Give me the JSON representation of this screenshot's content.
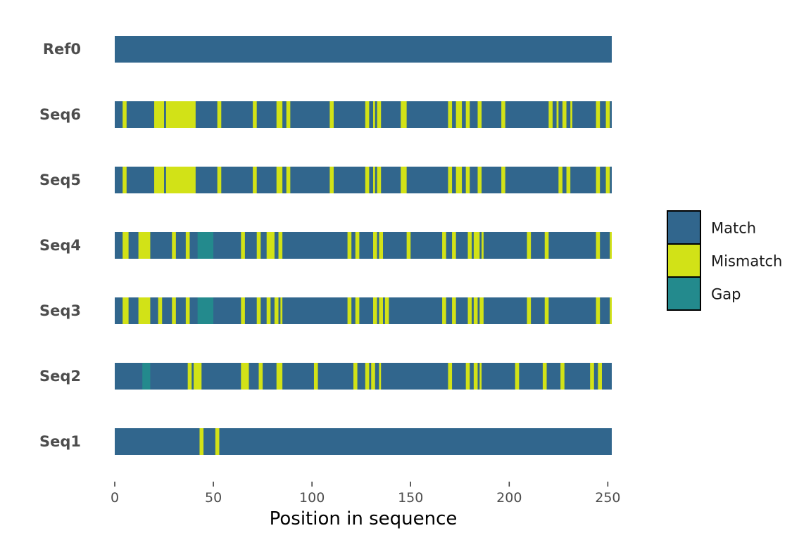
{
  "chart_data": {
    "type": "alignment-heatmap",
    "xlabel": "Position in sequence",
    "xlim": [
      0,
      252
    ],
    "xticks": [
      0,
      50,
      100,
      150,
      200,
      250
    ],
    "legend": {
      "placement": "right",
      "entries": [
        {
          "label": "Match",
          "color": "#31668d"
        },
        {
          "label": "Mismatch",
          "color": "#d2e217"
        },
        {
          "label": "Gap",
          "color": "#238a8d"
        }
      ]
    },
    "rows": [
      {
        "label": "Ref0",
        "mismatch": [],
        "gap": []
      },
      {
        "label": "Seq6",
        "mismatch": [
          [
            4,
            6
          ],
          [
            20,
            25
          ],
          [
            26,
            41
          ],
          [
            52,
            54
          ],
          [
            70,
            72
          ],
          [
            82,
            85
          ],
          [
            87,
            89
          ],
          [
            109,
            111
          ],
          [
            127,
            129
          ],
          [
            131,
            132
          ],
          [
            133,
            135
          ],
          [
            145,
            148
          ],
          [
            169,
            171
          ],
          [
            173,
            176
          ],
          [
            178,
            180
          ],
          [
            184,
            186
          ],
          [
            196,
            198
          ],
          [
            220,
            222
          ],
          [
            224,
            225
          ],
          [
            227,
            229
          ],
          [
            231,
            232
          ],
          [
            244,
            246
          ],
          [
            249,
            251
          ]
        ],
        "gap": []
      },
      {
        "label": "Seq5",
        "mismatch": [
          [
            4,
            6
          ],
          [
            20,
            25
          ],
          [
            26,
            41
          ],
          [
            52,
            54
          ],
          [
            70,
            72
          ],
          [
            82,
            85
          ],
          [
            87,
            89
          ],
          [
            109,
            111
          ],
          [
            127,
            129
          ],
          [
            131,
            132
          ],
          [
            133,
            135
          ],
          [
            145,
            148
          ],
          [
            169,
            171
          ],
          [
            173,
            176
          ],
          [
            178,
            180
          ],
          [
            184,
            186
          ],
          [
            196,
            198
          ],
          [
            225,
            227
          ],
          [
            229,
            231
          ],
          [
            244,
            246
          ],
          [
            249,
            251
          ]
        ],
        "gap": []
      },
      {
        "label": "Seq4",
        "mismatch": [
          [
            4,
            7
          ],
          [
            12,
            18
          ],
          [
            29,
            31
          ],
          [
            36,
            38
          ],
          [
            64,
            66
          ],
          [
            72,
            74
          ],
          [
            77,
            81
          ],
          [
            83,
            85
          ],
          [
            118,
            120
          ],
          [
            122,
            124
          ],
          [
            131,
            133
          ],
          [
            134,
            136
          ],
          [
            148,
            150
          ],
          [
            166,
            168
          ],
          [
            171,
            173
          ],
          [
            179,
            181
          ],
          [
            182,
            185
          ],
          [
            186,
            187
          ],
          [
            209,
            211
          ],
          [
            218,
            220
          ],
          [
            244,
            246
          ],
          [
            251,
            252
          ]
        ],
        "gap": [
          [
            42,
            50
          ]
        ]
      },
      {
        "label": "Seq3",
        "mismatch": [
          [
            4,
            7
          ],
          [
            12,
            18
          ],
          [
            22,
            24
          ],
          [
            29,
            31
          ],
          [
            36,
            38
          ],
          [
            64,
            66
          ],
          [
            72,
            74
          ],
          [
            77,
            79
          ],
          [
            81,
            83
          ],
          [
            84,
            85
          ],
          [
            118,
            120
          ],
          [
            122,
            124
          ],
          [
            131,
            133
          ],
          [
            134,
            136
          ],
          [
            137,
            139
          ],
          [
            166,
            168
          ],
          [
            171,
            173
          ],
          [
            179,
            181
          ],
          [
            182,
            184
          ],
          [
            185,
            187
          ],
          [
            209,
            211
          ],
          [
            218,
            220
          ],
          [
            244,
            246
          ],
          [
            251,
            252
          ]
        ],
        "gap": [
          [
            42,
            50
          ]
        ]
      },
      {
        "label": "Seq2",
        "mismatch": [
          [
            37,
            39
          ],
          [
            40,
            44
          ],
          [
            64,
            68
          ],
          [
            73,
            75
          ],
          [
            82,
            85
          ],
          [
            101,
            103
          ],
          [
            121,
            123
          ],
          [
            127,
            129
          ],
          [
            130,
            132
          ],
          [
            134,
            135
          ],
          [
            169,
            171
          ],
          [
            178,
            180
          ],
          [
            182,
            184
          ],
          [
            185,
            186
          ],
          [
            203,
            205
          ],
          [
            217,
            219
          ],
          [
            226,
            228
          ],
          [
            241,
            243
          ],
          [
            245,
            247
          ]
        ],
        "gap": [
          [
            14,
            18
          ]
        ]
      },
      {
        "label": "Seq1",
        "mismatch": [
          [
            43,
            45
          ],
          [
            51,
            53
          ]
        ],
        "gap": []
      }
    ]
  }
}
